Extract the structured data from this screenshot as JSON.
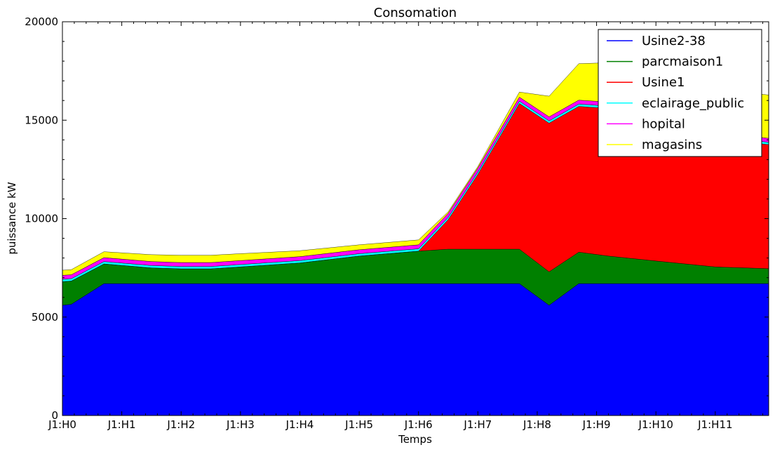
{
  "chart_data": {
    "type": "area",
    "stacked": true,
    "title": "Consomation",
    "xlabel": "Temps",
    "ylabel": "puissance kW",
    "ylim": [
      0,
      20000
    ],
    "xlim": [
      0,
      11.9
    ],
    "yticks": [
      0,
      5000,
      10000,
      15000,
      20000
    ],
    "xticks": [
      {
        "pos": 0,
        "label": "J1:H0"
      },
      {
        "pos": 1,
        "label": "J1:H1"
      },
      {
        "pos": 2,
        "label": "J1:H2"
      },
      {
        "pos": 3,
        "label": "J1:H3"
      },
      {
        "pos": 4,
        "label": "J1:H4"
      },
      {
        "pos": 5,
        "label": "J1:H5"
      },
      {
        "pos": 6,
        "label": "J1:H6"
      },
      {
        "pos": 7,
        "label": "J1:H7"
      },
      {
        "pos": 8,
        "label": "J1:H8"
      },
      {
        "pos": 9,
        "label": "J1:H9"
      },
      {
        "pos": 10,
        "label": "J1:H10"
      },
      {
        "pos": 11,
        "label": "J1:H11"
      }
    ],
    "grid": false,
    "legend_position": "top-right",
    "x": [
      0,
      0.15,
      0.7,
      1.5,
      2.0,
      2.5,
      3.0,
      4.0,
      5.0,
      6.0,
      6.5,
      7.0,
      7.7,
      8.2,
      8.7,
      9.2,
      10.0,
      11.0,
      11.9
    ],
    "series": [
      {
        "name": "Usine2-38",
        "color": "#0000ff",
        "values": [
          5600,
          5650,
          6700,
          6700,
          6700,
          6700,
          6700,
          6700,
          6700,
          6700,
          6700,
          6700,
          6700,
          5600,
          6700,
          6700,
          6700,
          6700,
          6700
        ]
      },
      {
        "name": "parcmaison1",
        "color": "#008000",
        "values": [
          1200,
          1180,
          1000,
          800,
          750,
          750,
          850,
          1050,
          1400,
          1650,
          1750,
          1750,
          1750,
          1700,
          1600,
          1400,
          1150,
          850,
          760
        ]
      },
      {
        "name": "Usine1",
        "color": "#ff0000",
        "values": [
          0,
          0,
          0,
          0,
          0,
          0,
          0,
          0,
          0,
          0,
          1500,
          3800,
          7400,
          7550,
          7400,
          7500,
          7200,
          6500,
          6300
        ]
      },
      {
        "name": "eclairage_public",
        "color": "#00ffff",
        "values": [
          120,
          120,
          120,
          120,
          120,
          120,
          120,
          120,
          120,
          120,
          120,
          120,
          120,
          120,
          120,
          120,
          120,
          120,
          120
        ]
      },
      {
        "name": "hopital",
        "color": "#ff00ff",
        "values": [
          200,
          200,
          200,
          200,
          200,
          200,
          200,
          200,
          200,
          200,
          200,
          200,
          200,
          200,
          200,
          200,
          200,
          200,
          200
        ]
      },
      {
        "name": "magasins",
        "color": "#ffff00",
        "values": [
          260,
          260,
          300,
          350,
          370,
          370,
          350,
          300,
          250,
          250,
          80,
          80,
          260,
          1050,
          1850,
          2000,
          2200,
          2200,
          2200
        ]
      }
    ]
  }
}
